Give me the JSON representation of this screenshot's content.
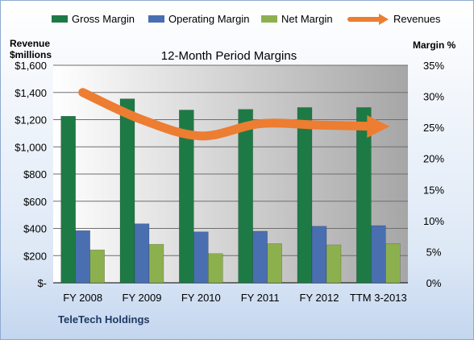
{
  "chart_data": {
    "type": "bar",
    "title": "12-Month Period Margins",
    "categories": [
      "FY 2008",
      "FY 2009",
      "FY 2010",
      "FY 2011",
      "FY 2012",
      "TTM 3-2013"
    ],
    "series": [
      {
        "name": "Gross Margin",
        "axis": "right",
        "values": [
          26.8,
          29.6,
          27.8,
          27.9,
          28.2,
          28.2
        ],
        "color": "#1e7a45"
      },
      {
        "name": "Operating Margin",
        "axis": "right",
        "values": [
          8.4,
          9.5,
          8.2,
          8.3,
          9.1,
          9.2
        ],
        "color": "#4a6fb0"
      },
      {
        "name": "Net Margin",
        "axis": "right",
        "values": [
          5.3,
          6.2,
          4.7,
          6.3,
          6.1,
          6.3
        ],
        "color": "#8db04f"
      },
      {
        "name": "Revenues",
        "axis": "left",
        "type": "line",
        "values": [
          1400,
          1200,
          1080,
          1170,
          1160,
          1150
        ],
        "color": "#ed7d31"
      }
    ],
    "left_axis": {
      "title_line1": "Revenue",
      "title_line2": "$millions",
      "ylim": [
        0,
        1600
      ],
      "ticks": [
        0,
        200,
        400,
        600,
        800,
        1000,
        1200,
        1400,
        1600
      ],
      "tick_labels": [
        "$-",
        "$200",
        "$400",
        "$600",
        "$800",
        "$1,000",
        "$1,200",
        "$1,400",
        "$1,600"
      ]
    },
    "right_axis": {
      "title": "Margin %",
      "ylim": [
        0,
        35
      ],
      "ticks": [
        0,
        5,
        10,
        15,
        20,
        25,
        30,
        35
      ],
      "tick_labels": [
        "0%",
        "5%",
        "10%",
        "15%",
        "20%",
        "25%",
        "30%",
        "35%"
      ]
    },
    "grid": true,
    "legend_position": "top",
    "footer": "TeleTech Holdings"
  }
}
